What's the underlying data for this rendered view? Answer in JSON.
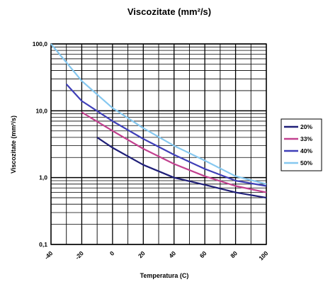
{
  "chart_data": {
    "type": "line",
    "title": "Viscozitate (mm²/s)",
    "xlabel": "Temperatura (C)",
    "ylabel": "Viscozitate (mm²/s)",
    "xlim": [
      -40,
      100
    ],
    "ylim": [
      0.1,
      100
    ],
    "y_scale": "log",
    "grid": true,
    "legend_position": "right",
    "x_ticks": [
      "-40",
      "-20",
      "0",
      "20",
      "40",
      "60",
      "80",
      "100"
    ],
    "y_ticks": [
      "0,1",
      "1,0",
      "10,0",
      "100,0"
    ],
    "series": [
      {
        "name": "20%",
        "color": "#1f1f78",
        "x": [
          -10,
          0,
          20,
          40,
          60,
          80,
          100
        ],
        "y": [
          4.0,
          2.8,
          1.55,
          1.0,
          0.78,
          0.6,
          0.5
        ]
      },
      {
        "name": "33%",
        "color": "#c2418f",
        "x": [
          -20,
          0,
          20,
          40,
          60,
          80,
          100
        ],
        "y": [
          9.5,
          5.0,
          2.7,
          1.6,
          1.05,
          0.75,
          0.6
        ]
      },
      {
        "name": "40%",
        "color": "#3f3fb8",
        "x": [
          -30,
          -20,
          0,
          20,
          40,
          60,
          80,
          100
        ],
        "y": [
          25,
          14,
          7.0,
          3.8,
          2.2,
          1.35,
          0.9,
          0.75
        ]
      },
      {
        "name": "50%",
        "color": "#86c8f0",
        "x": [
          -40,
          -20,
          0,
          20,
          40,
          60,
          80,
          100
        ],
        "y": [
          100,
          28,
          11,
          5.5,
          3.0,
          1.8,
          1.05,
          0.8
        ]
      }
    ]
  }
}
